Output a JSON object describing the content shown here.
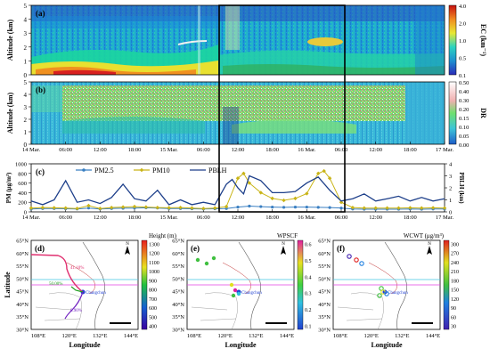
{
  "panels": {
    "a": {
      "label": "(a)",
      "ylabel": "Altitude (km)",
      "cbar_label": "EC (km⁻¹)",
      "cbar_ticks": [
        "4.0",
        "2.0",
        "1.0",
        "0.5",
        "0.1"
      ],
      "yticks": [
        "0",
        "1",
        "2",
        "3",
        "4",
        "5"
      ]
    },
    "b": {
      "label": "(b)",
      "ylabel": "Altitude (km)",
      "cbar_label": "DR",
      "cbar_ticks": [
        "0.50",
        "0.40",
        "0.30",
        "0.20",
        "0.15",
        "0.10",
        "0.05",
        "0.00"
      ],
      "yticks": [
        "0",
        "1",
        "2",
        "3",
        "4",
        "5"
      ]
    },
    "xticks_ab": [
      "14 Mar.",
      "06:00",
      "12:00",
      "18:00",
      "15 Mar.",
      "06:00",
      "12:00",
      "18:00",
      "16 Mar.",
      "06:00",
      "12:00",
      "18:00",
      "17 Mar."
    ],
    "d": {
      "label": "(d)",
      "cbar_title": "Height (m)",
      "cbar_ticks": [
        "1300",
        "1200",
        "1100",
        "1000",
        "900",
        "800",
        "700",
        "600",
        "500",
        "400"
      ],
      "annotations": [
        "41.10%",
        "50.00%",
        "8.90%"
      ]
    },
    "e": {
      "label": "(e)",
      "cbar_title": "WPSCF",
      "cbar_ticks": [
        "0.6",
        "0.5",
        "0.4",
        "0.3",
        "0.2",
        "0.1"
      ]
    },
    "f": {
      "label": "(f)",
      "cbar_title": "WCWT (μg/m³)",
      "cbar_ticks": [
        "300",
        "270",
        "240",
        "210",
        "180",
        "150",
        "120",
        "90",
        "60",
        "30"
      ]
    },
    "map_lat_ticks": [
      "65°N",
      "60°N",
      "55°N",
      "50°N",
      "45°N",
      "40°N",
      "35°N",
      "30°N"
    ],
    "map_lon_ticks": [
      "108°E",
      "120°E",
      "132°E",
      "144°E"
    ],
    "map_xlabel": "Longitude",
    "map_ylabel": "Latitude",
    "city": "Changchun"
  },
  "chart_data": {
    "label": "(c)",
    "type": "line",
    "xticks": [
      "14 Mar.",
      "06:00",
      "12:00",
      "18:00",
      "15 Mar.",
      "06:00",
      "12:00",
      "18:00",
      "16 Mar.",
      "06:00",
      "12:00",
      "18:00",
      "17 Mar."
    ],
    "x_hours": [
      0,
      6,
      12,
      18,
      24,
      30,
      36,
      42,
      48,
      54,
      60,
      66,
      72
    ],
    "ylabel": "PM (μg/m³)",
    "ylim": [
      0,
      1000
    ],
    "yticks": [
      0,
      200,
      400,
      600,
      800,
      1000
    ],
    "y2label": "PBLH (km)",
    "y2lim": [
      0,
      4
    ],
    "y2ticks": [
      0,
      1,
      2,
      3,
      4
    ],
    "series": [
      {
        "name": "PM2.5",
        "axis": "left",
        "color": "#3a7fc2",
        "x": [
          0,
          2,
          4,
          6,
          8,
          10,
          12,
          14,
          16,
          18,
          20,
          22,
          24,
          26,
          28,
          30,
          32,
          34,
          36,
          38,
          40,
          42,
          44,
          46,
          48,
          50,
          52,
          54,
          56,
          58,
          60,
          62,
          64,
          66,
          68,
          70,
          72
        ],
        "y": [
          60,
          70,
          70,
          65,
          60,
          80,
          60,
          70,
          75,
          80,
          85,
          80,
          70,
          70,
          65,
          60,
          65,
          70,
          100,
          120,
          110,
          100,
          95,
          100,
          100,
          95,
          90,
          80,
          60,
          55,
          55,
          55,
          55,
          60,
          55,
          60,
          60
        ]
      },
      {
        "name": "PM10",
        "axis": "left",
        "color": "#c9b417",
        "x": [
          0,
          2,
          4,
          6,
          8,
          10,
          12,
          14,
          16,
          18,
          20,
          22,
          24,
          26,
          28,
          30,
          32,
          34,
          36,
          37,
          38,
          40,
          42,
          44,
          46,
          48,
          50,
          51,
          52,
          54,
          56,
          58,
          60,
          62,
          64,
          66,
          68,
          70,
          72
        ],
        "y": [
          80,
          90,
          85,
          80,
          70,
          130,
          70,
          90,
          100,
          110,
          100,
          90,
          85,
          90,
          80,
          70,
          80,
          110,
          700,
          800,
          600,
          400,
          280,
          240,
          280,
          380,
          800,
          850,
          700,
          200,
          90,
          80,
          80,
          80,
          80,
          85,
          80,
          85,
          80
        ]
      },
      {
        "name": "PBLH",
        "axis": "right",
        "color": "#1d3f8a",
        "x": [
          0,
          2,
          4,
          6,
          8,
          10,
          12,
          14,
          16,
          18,
          20,
          22,
          24,
          26,
          28,
          30,
          32,
          34,
          35,
          36,
          37,
          38,
          40,
          42,
          44,
          46,
          48,
          50,
          52,
          54,
          56,
          58,
          60,
          62,
          64,
          66,
          68,
          70,
          72
        ],
        "y": [
          0.9,
          0.6,
          1.0,
          2.6,
          0.8,
          1.0,
          0.7,
          1.2,
          2.3,
          1.1,
          0.9,
          1.8,
          0.6,
          1.0,
          0.6,
          0.8,
          0.6,
          2.3,
          2.7,
          2.0,
          1.5,
          3.0,
          2.6,
          1.6,
          1.6,
          1.7,
          2.4,
          2.9,
          1.8,
          0.9,
          1.1,
          1.5,
          0.9,
          1.1,
          1.3,
          0.9,
          1.2,
          0.9,
          1.1
        ]
      }
    ],
    "legend": [
      "PM2.5",
      "PM10",
      "PBLH"
    ]
  }
}
